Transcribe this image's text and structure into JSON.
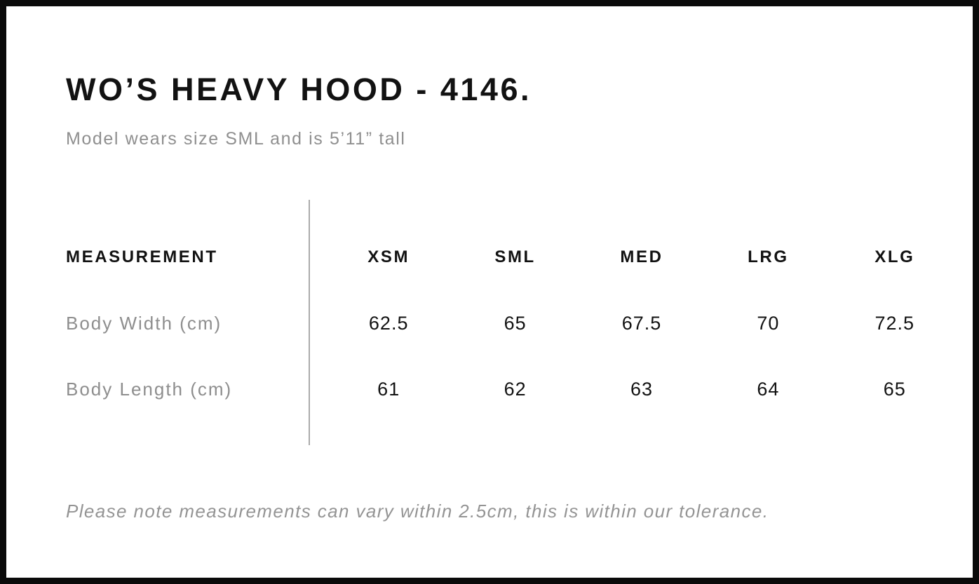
{
  "header": {
    "title": "WO’S HEAVY HOOD - 4146.",
    "subtitle": "Model wears size SML and is 5’11” tall"
  },
  "size_chart": {
    "measurement_header": "MEASUREMENT",
    "size_headers": [
      "XSM",
      "SML",
      "MED",
      "LRG",
      "XLG"
    ],
    "rows": [
      {
        "label": "Body Width (cm)",
        "values": [
          "62.5",
          "65",
          "67.5",
          "70",
          "72.5"
        ]
      },
      {
        "label": "Body Length (cm)",
        "values": [
          "61",
          "62",
          "63",
          "64",
          "65"
        ]
      }
    ]
  },
  "footer": {
    "note": "Please note measurements can vary within 2.5cm, this is within our tolerance."
  },
  "colors": {
    "border": "#0a0a0a",
    "text_primary": "#121212",
    "text_muted": "#8e8e8e",
    "divider": "#ababab",
    "background": "#ffffff"
  }
}
